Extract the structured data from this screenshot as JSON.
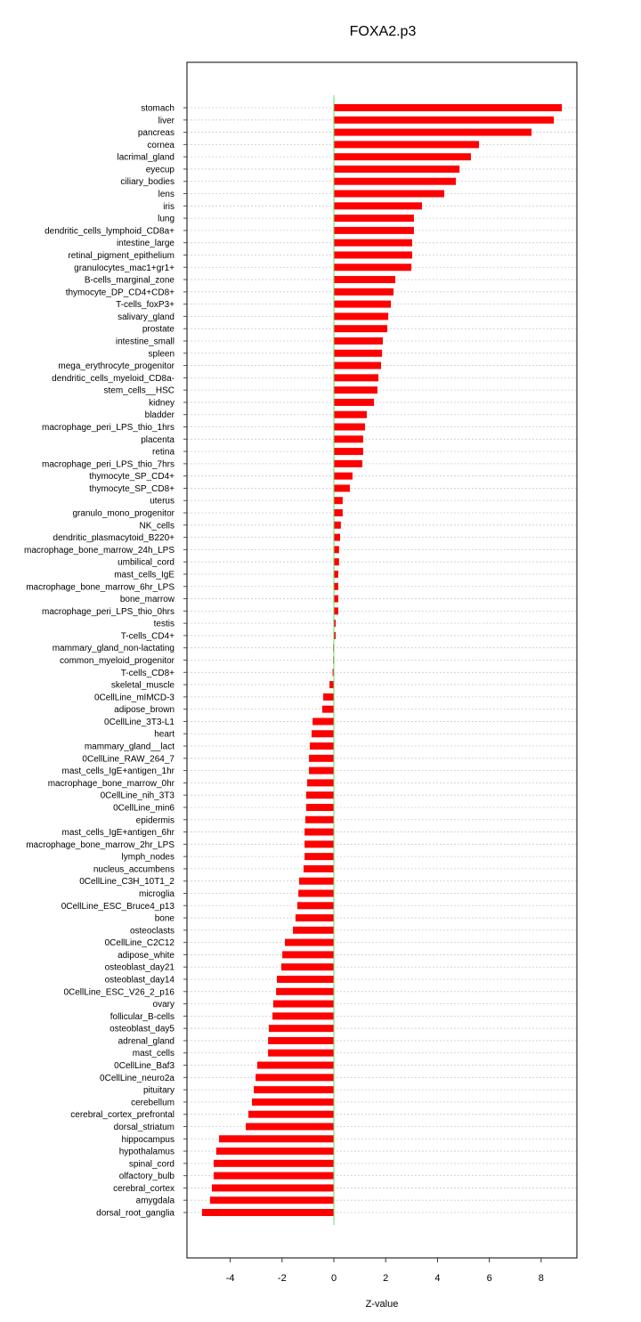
{
  "chart_data": {
    "type": "bar",
    "orientation": "horizontal",
    "title": "FOXA2.p3",
    "xlabel": "Z-value",
    "ylabel": "",
    "xlim": [
      -5.67,
      9.38
    ],
    "xticks": [
      -4,
      -2,
      0,
      2,
      4,
      6,
      8
    ],
    "grid": "horizontal dotted",
    "bar_color": "#ff0000",
    "zero_line_color": "#66dd66",
    "categories": [
      "stomach",
      "liver",
      "pancreas",
      "cornea",
      "lacrimal_gland",
      "eyecup",
      "ciliary_bodies",
      "lens",
      "iris",
      "lung",
      "dendritic_cells_lymphoid_CD8a+",
      "intestine_large",
      "retinal_pigment_epithelium",
      "granulocytes_mac1+gr1+",
      "B-cells_marginal_zone",
      "thymocyte_DP_CD4+CD8+",
      "T-cells_foxP3+",
      "salivary_gland",
      "prostate",
      "intestine_small",
      "spleen",
      "mega_erythrocyte_progenitor",
      "dendritic_cells_myeloid_CD8a-",
      "stem_cells__HSC",
      "kidney",
      "bladder",
      "macrophage_peri_LPS_thio_1hrs",
      "placenta",
      "retina",
      "macrophage_peri_LPS_thio_7hrs",
      "thymocyte_SP_CD4+",
      "thymocyte_SP_CD8+",
      "uterus",
      "granulo_mono_progenitor",
      "NK_cells",
      "dendritic_plasmacytoid_B220+",
      "macrophage_bone_marrow_24h_LPS",
      "umbilical_cord",
      "mast_cells_IgE",
      "macrophage_bone_marrow_6hr_LPS",
      "bone_marrow",
      "macrophage_peri_LPS_thio_0hrs",
      "testis",
      "T-cells_CD4+",
      "mammary_gland_non-lactating",
      "common_myeloid_progenitor",
      "T-cells_CD8+",
      "skeletal_muscle",
      "0CellLine_mIMCD-3",
      "adipose_brown",
      "0CellLine_3T3-L1",
      "heart",
      "mammary_gland__lact",
      "0CellLine_RAW_264_7",
      "mast_cells_IgE+antigen_1hr",
      "macrophage_bone_marrow_0hr",
      "0CellLine_nih_3T3",
      "0CellLine_min6",
      "epidermis",
      "mast_cells_IgE+antigen_6hr",
      "macrophage_bone_marrow_2hr_LPS",
      "lymph_nodes",
      "nucleus_accumbens",
      "0CellLine_C3H_10T1_2",
      "microglia",
      "0CellLine_ESC_Bruce4_p13",
      "bone",
      "osteoclasts",
      "0CellLine_C2C12",
      "adipose_white",
      "osteoblast_day21",
      "osteoblast_day14",
      "0CellLine_ESC_V26_2_p16",
      "ovary",
      "follicular_B-cells",
      "osteoblast_day5",
      "adrenal_gland",
      "mast_cells",
      "0CellLine_Baf3",
      "0CellLine_neuro2a",
      "pituitary",
      "cerebellum",
      "cerebral_cortex_prefrontal",
      "dorsal_striatum",
      "hippocampus",
      "hypothalamus",
      "spinal_cord",
      "olfactory_bulb",
      "cerebral_cortex",
      "amygdala",
      "dorsal_root_ganglia"
    ],
    "values": [
      8.8,
      8.49,
      7.63,
      5.6,
      5.29,
      4.85,
      4.71,
      4.26,
      3.4,
      3.09,
      3.09,
      3.02,
      3.02,
      2.99,
      2.37,
      2.3,
      2.2,
      2.1,
      2.06,
      1.89,
      1.86,
      1.82,
      1.72,
      1.68,
      1.55,
      1.27,
      1.2,
      1.13,
      1.13,
      1.1,
      0.72,
      0.62,
      0.34,
      0.34,
      0.27,
      0.24,
      0.2,
      0.2,
      0.17,
      0.17,
      0.17,
      0.17,
      0.07,
      0.07,
      -0.03,
      -0.03,
      -0.05,
      -0.17,
      -0.41,
      -0.45,
      -0.82,
      -0.86,
      -0.93,
      -0.96,
      -0.96,
      -1.03,
      -1.07,
      -1.07,
      -1.1,
      -1.13,
      -1.13,
      -1.13,
      -1.17,
      -1.34,
      -1.37,
      -1.41,
      -1.48,
      -1.58,
      -1.89,
      -1.99,
      -2.03,
      -2.2,
      -2.23,
      -2.34,
      -2.37,
      -2.51,
      -2.54,
      -2.54,
      -2.96,
      -3.02,
      -3.09,
      -3.16,
      -3.3,
      -3.4,
      -4.43,
      -4.54,
      -4.64,
      -4.64,
      -4.71,
      -4.78,
      -5.09
    ]
  }
}
